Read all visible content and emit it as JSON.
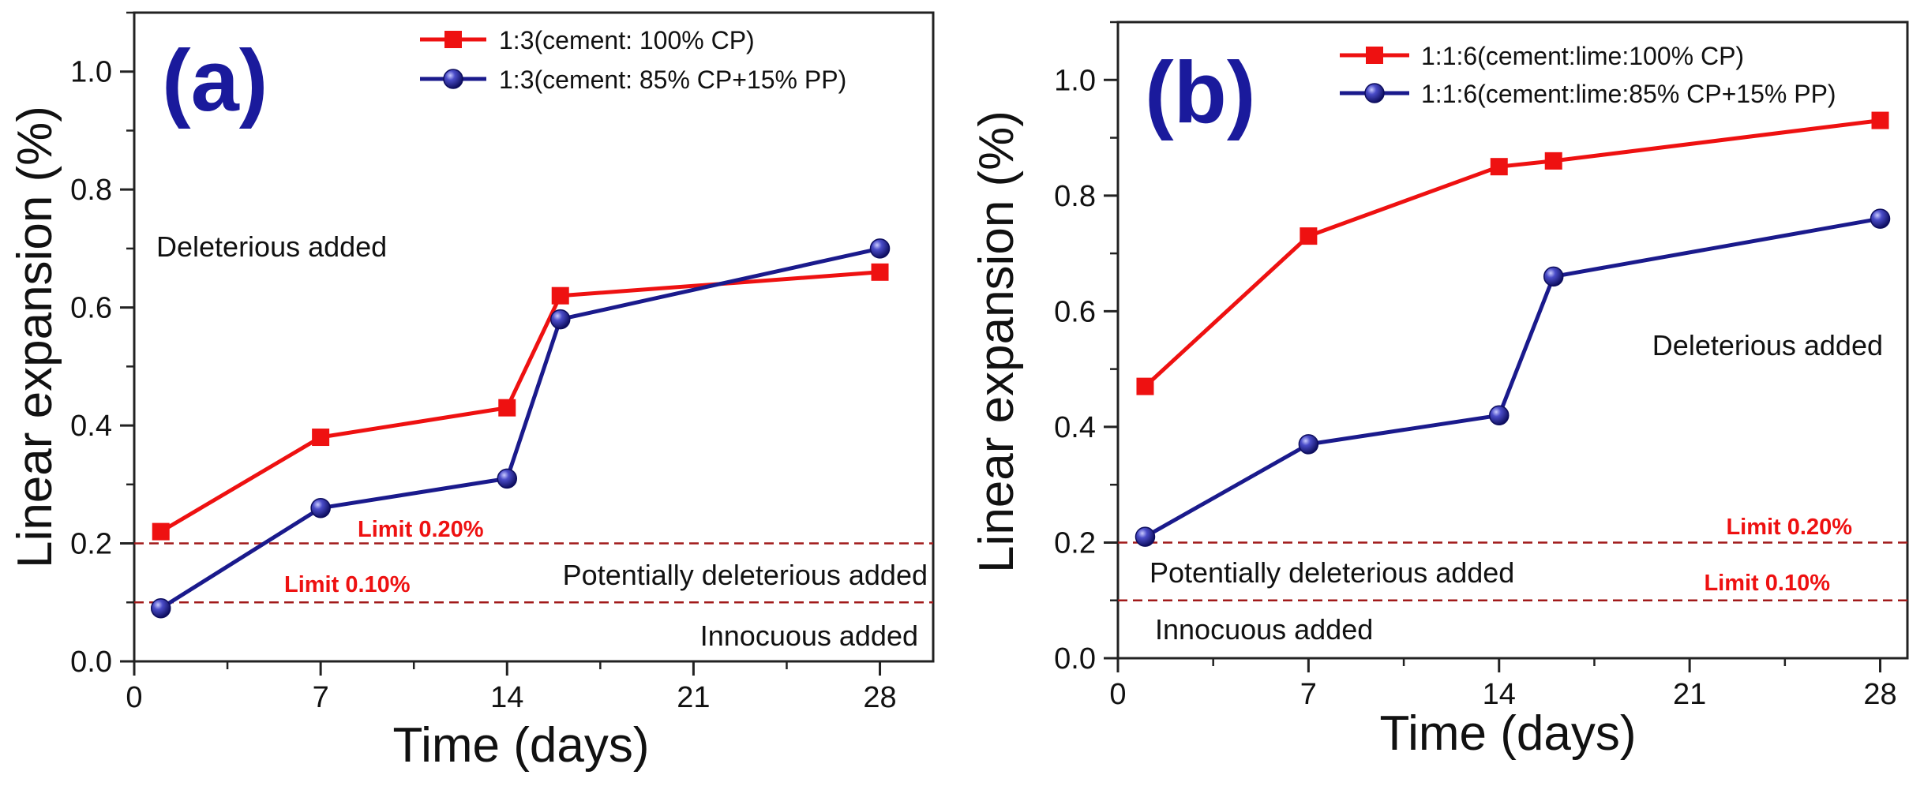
{
  "chart_data": [
    {
      "type": "line",
      "panel_label": "(a)",
      "xlabel": "Time (days)",
      "ylabel": "Linear expansion (%)",
      "xlim": [
        0,
        30
      ],
      "ylim": [
        0,
        1.1
      ],
      "x_ticks": [
        "0",
        "7",
        "14",
        "21",
        "28"
      ],
      "y_ticks": [
        "0.0",
        "0.2",
        "0.4",
        "0.6",
        "0.8",
        "1.0"
      ],
      "series": [
        {
          "name": "1:3(cement: 100% CP)",
          "marker": "square",
          "color": "#ee1111",
          "x": [
            1,
            7,
            14,
            16,
            28
          ],
          "values": [
            0.22,
            0.38,
            0.43,
            0.62,
            0.66
          ]
        },
        {
          "name": "1:3(cement: 85% CP+15% PP)",
          "marker": "circle",
          "color": "#1a1a8c",
          "x": [
            1,
            7,
            14,
            16,
            28
          ],
          "values": [
            0.09,
            0.26,
            0.31,
            0.58,
            0.7
          ]
        }
      ],
      "limit_lines": [
        {
          "label": "Limit 0.20%",
          "value": 0.2
        },
        {
          "label": "Limit 0.10%",
          "value": 0.1
        }
      ],
      "annotations": [
        "Deleterious added",
        "Potentially deleterious added",
        "Innocuous added"
      ]
    },
    {
      "type": "line",
      "panel_label": "(b)",
      "xlabel": "Time (days)",
      "ylabel": "Linear expansion (%)",
      "xlim": [
        0,
        29
      ],
      "ylim": [
        0,
        1.1
      ],
      "x_ticks": [
        "0",
        "7",
        "14",
        "21",
        "28"
      ],
      "y_ticks": [
        "0.0",
        "0.2",
        "0.4",
        "0.6",
        "0.8",
        "1.0"
      ],
      "series": [
        {
          "name": "1:1:6(cement:lime:100% CP)",
          "marker": "square",
          "color": "#ee1111",
          "x": [
            1,
            7,
            14,
            16,
            28
          ],
          "values": [
            0.47,
            0.73,
            0.85,
            0.86,
            0.93
          ]
        },
        {
          "name": "1:1:6(cement:lime:85% CP+15% PP)",
          "marker": "circle",
          "color": "#1a1a8c",
          "x": [
            1,
            7,
            14,
            16,
            28
          ],
          "values": [
            0.21,
            0.37,
            0.42,
            0.66,
            0.76
          ]
        }
      ],
      "limit_lines": [
        {
          "label": "Limit 0.20%",
          "value": 0.2
        },
        {
          "label": "Limit 0.10%",
          "value": 0.1
        }
      ],
      "annotations": [
        "Deleterious added",
        "Potentially deleterious added",
        "Innocuous added"
      ]
    }
  ]
}
